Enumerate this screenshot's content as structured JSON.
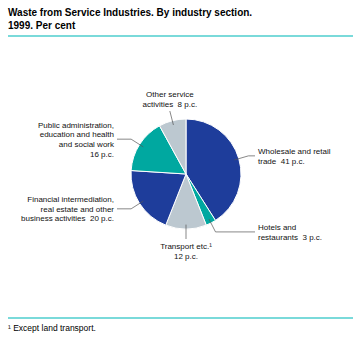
{
  "chart_data": {
    "type": "pie",
    "title": "Waste from Service Industries. By industry section.",
    "subtitle": "1999. Per cent",
    "annotations": [
      "¹ Except land transport."
    ],
    "categories": [
      "Wholesale and retail\ntrade  41 p.c.",
      "Hotels and\nrestaurants  3 p.c.",
      "Transport etc.¹\n12 p.c.",
      "Financial intermediation,\nreal estate and other\nbusiness activities  20 p.c.",
      "Public administration,\neducation and health\nand social work\n16 p.c.",
      "Other service\nactivities  8 p.c."
    ],
    "values": [
      41,
      3,
      12,
      20,
      16,
      8
    ],
    "colors": [
      "#1e3d9b",
      "#00a8a0",
      "#bcc8d0",
      "#1e3d9b",
      "#00a8a0",
      "#bcc8d0"
    ]
  }
}
